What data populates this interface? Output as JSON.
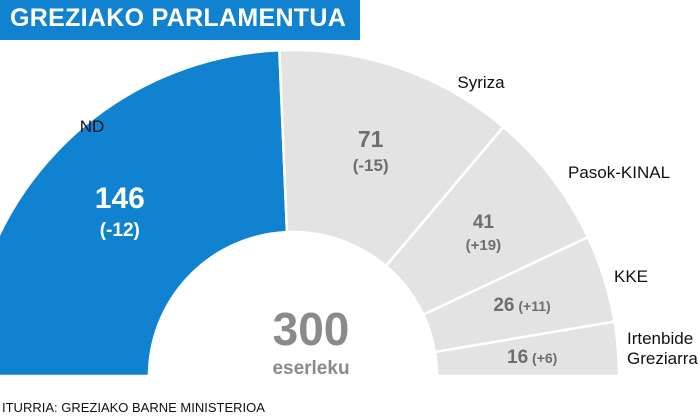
{
  "title": "GREZIAKO PARLAMENTUA",
  "source": "ITURRIA: GREZIAKO BARNE MINISTERIOA",
  "chart_data": {
    "type": "pie",
    "subtype": "parliament-half-donut",
    "total": "300",
    "total_label": "eserleku",
    "series": [
      {
        "name": "ND",
        "seats": 146,
        "seats_label": "146",
        "change": "(-12)",
        "color": "#1182cf"
      },
      {
        "name": "Syriza",
        "seats": 71,
        "seats_label": "71",
        "change": "(-15)",
        "color": "#e3e3e3"
      },
      {
        "name": "Pasok-KINAL",
        "seats": 41,
        "seats_label": "41",
        "change": "(+19)",
        "color": "#e3e3e3"
      },
      {
        "name": "KKE",
        "seats": 26,
        "seats_label": "26",
        "change": "(+11)",
        "color": "#e3e3e3"
      },
      {
        "name": "Irtenbide Greziarra",
        "name_lines": [
          "Irtenbide",
          "Greziarra"
        ],
        "seats": 16,
        "seats_label": "16",
        "change": "(+6)",
        "color": "#e3e3e3"
      }
    ]
  }
}
